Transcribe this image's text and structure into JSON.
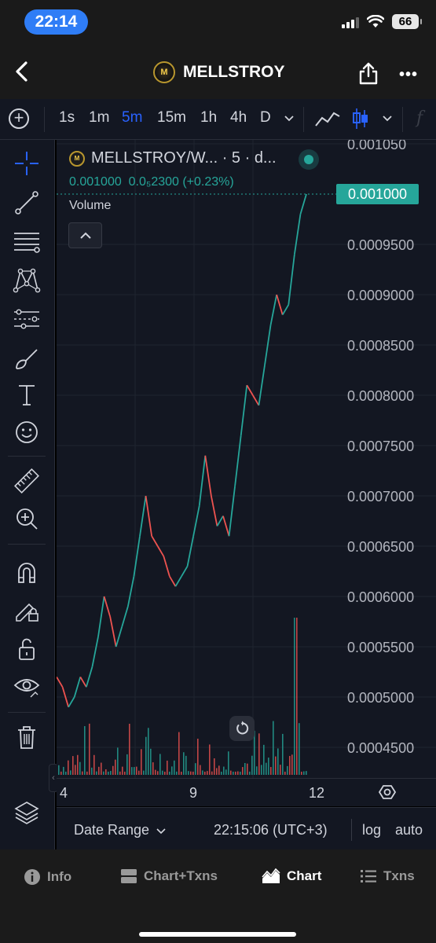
{
  "status": {
    "time": "22:14",
    "battery": "66"
  },
  "header": {
    "title": "MELLSTROY",
    "logo_text": "M"
  },
  "toolbar": {
    "intervals": [
      "1s",
      "1m",
      "5m",
      "15m",
      "1h",
      "4h",
      "D"
    ],
    "active_interval": "5m"
  },
  "legend": {
    "symbol": "MELLSTROY/W... · 5 · d...",
    "price": "0.001000",
    "change": "0.0₅2300 (+0.23%)",
    "volume_label": "Volume"
  },
  "price_axis": {
    "labels": [
      "0.001050",
      "0.0009500",
      "0.0009000",
      "0.0008500",
      "0.0008000",
      "0.0007500",
      "0.0007000",
      "0.0006500",
      "0.0006000",
      "0.0005500",
      "0.0005000",
      "0.0004500"
    ],
    "current_price_badge": "0.001000"
  },
  "time_axis": {
    "labels": [
      "4",
      "9",
      "12"
    ]
  },
  "datebar": {
    "date_range": "Date Range",
    "clock": "22:15:06 (UTC+3)",
    "log": "log",
    "auto": "auto"
  },
  "nav": {
    "info": "Info",
    "chart_txns": "Chart+Txns",
    "chart": "Chart",
    "txns": "Txns"
  },
  "colors": {
    "up": "#26a69a",
    "down": "#ef5350",
    "accent": "#2962ff",
    "background": "#131722"
  },
  "chart_data": {
    "type": "line",
    "x_labels": [
      "4",
      "9",
      "12"
    ],
    "y_range": [
      0.00043,
      0.00105
    ],
    "price_series_approx": [
      0.00052,
      0.00051,
      0.00049,
      0.0005,
      0.00052,
      0.00051,
      0.00053,
      0.00056,
      0.0006,
      0.00058,
      0.00055,
      0.00057,
      0.00059,
      0.00062,
      0.00066,
      0.0007,
      0.00066,
      0.00065,
      0.00064,
      0.00062,
      0.00061,
      0.00062,
      0.00063,
      0.00066,
      0.00069,
      0.00074,
      0.0007,
      0.00067,
      0.00068,
      0.00066,
      0.00071,
      0.00076,
      0.00081,
      0.0008,
      0.00079,
      0.00083,
      0.00087,
      0.0009,
      0.00088,
      0.00089,
      0.00094,
      0.00098,
      0.001
    ],
    "last_price": 0.001
  }
}
